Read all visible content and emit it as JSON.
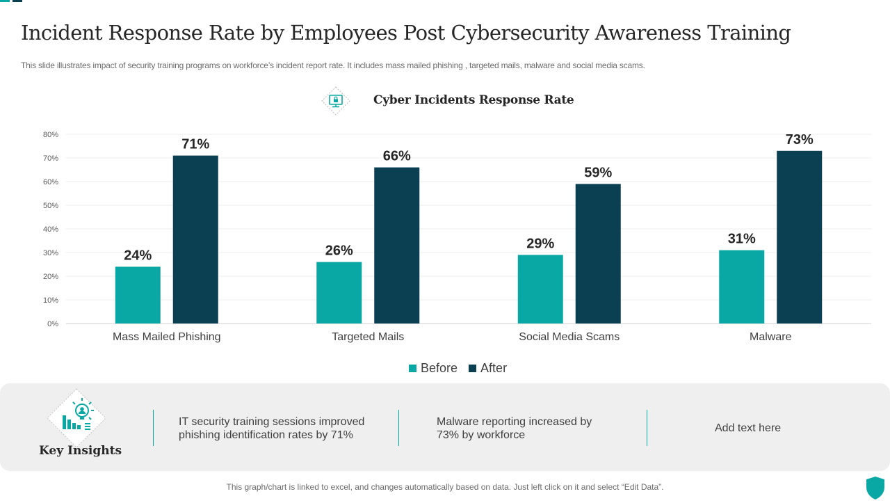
{
  "page": {
    "title": "Incident Response Rate by Employees Post Cybersecurity Awareness Training",
    "subtitle": "This slide illustrates impact of security training programs on workforce’s incident report rate. It includes mass mailed phishing , targeted mails, malware and social media scams.",
    "footer": "This graph/chart is linked to excel,  and changes automatically based on data. Just left click on it and select “Edit Data”."
  },
  "chart_data": {
    "type": "bar",
    "title": "Cyber Incidents Response Rate",
    "categories": [
      "Mass Mailed Phishing",
      "Targeted Mails",
      "Social Media Scams",
      "Malware"
    ],
    "series": [
      {
        "name": "Before",
        "values": [
          24,
          26,
          29,
          31
        ],
        "color": "#0aa8a4"
      },
      {
        "name": "After",
        "values": [
          71,
          66,
          59,
          73
        ],
        "color": "#0b3f52"
      }
    ],
    "y_ticks": [
      0,
      10,
      20,
      30,
      40,
      50,
      60,
      70,
      80
    ],
    "ylim": [
      0,
      80
    ],
    "value_suffix": "%",
    "grid": true,
    "legend_position": "bottom-center",
    "legend": [
      "Before",
      "After"
    ]
  },
  "insights": {
    "label": "Key Insights",
    "items": [
      {
        "line1": "IT security training sessions improved",
        "line2": "phishing identification rates by 71%"
      },
      {
        "line1": "Malware reporting increased by",
        "line2": "73% by workforce"
      },
      {
        "line1": "Add text here"
      }
    ]
  },
  "colors": {
    "accent": "#0aa8a4",
    "dark": "#0b3f52",
    "panel": "#efefef"
  }
}
